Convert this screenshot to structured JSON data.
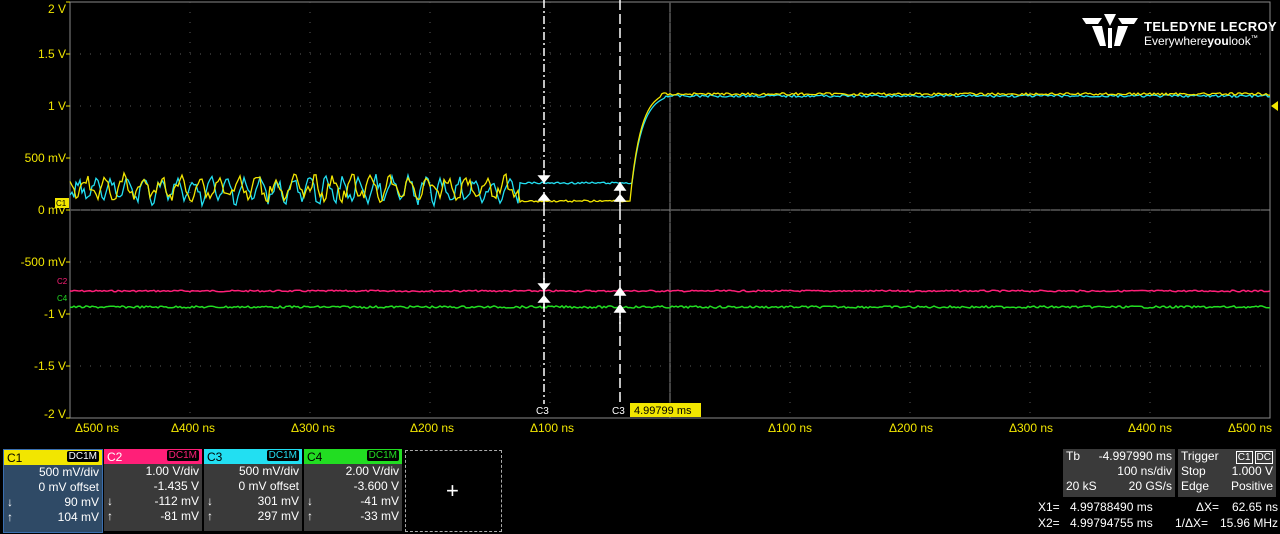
{
  "brand": {
    "name": "TELEDYNE LECROY",
    "tagline_prefix": "Everywhere",
    "tagline_bold": "you",
    "tagline_suffix": "look"
  },
  "colors": {
    "c1": "#f2e600",
    "c2": "#ff1f78",
    "c3": "#22dff2",
    "c4": "#22dd22",
    "grid": "#5a5a5a"
  },
  "y_axis_labels": [
    "2 V",
    "1.5 V",
    "1 V",
    "500 mV",
    "0 mV",
    "-500 mV",
    "-1 V",
    "-1.5 V",
    "-2 V"
  ],
  "x_axis_labels": [
    "Δ500 ns",
    "Δ400 ns",
    "Δ300 ns",
    "Δ200 ns",
    "Δ100 ns",
    "Δ100 ns",
    "Δ200 ns",
    "Δ300 ns",
    "Δ400 ns",
    "Δ500 ns"
  ],
  "trace_markers": {
    "c1": "C1",
    "c2": "C2",
    "c3": "C3",
    "c4": "C4"
  },
  "cursor_markers": {
    "left": "C3",
    "right": "C3",
    "trigger_time": "4.99799 ms"
  },
  "channels": [
    {
      "name": "C1",
      "coupling": "DC1M",
      "vdiv": "500 mV/div",
      "offset": "0 mV offset",
      "down": "90 mV",
      "up": "104 mV",
      "color": "#f2e600"
    },
    {
      "name": "C2",
      "coupling": "DC1M",
      "vdiv": "1.00 V/div",
      "offset": "-1.435 V",
      "down": "-112 mV",
      "up": "-81 mV",
      "color": "#ff1f78"
    },
    {
      "name": "C3",
      "coupling": "DC1M",
      "vdiv": "500 mV/div",
      "offset": "0 mV offset",
      "down": "301 mV",
      "up": "297 mV",
      "color": "#22dff2"
    },
    {
      "name": "C4",
      "coupling": "DC1M",
      "vdiv": "2.00 V/div",
      "offset": "-3.600 V",
      "down": "-41 mV",
      "up": "-33 mV",
      "color": "#22dd22"
    }
  ],
  "timebase": {
    "label": "Tb",
    "delay": "-4.997990 ms",
    "tdiv": "100 ns/div",
    "samples": "20 kS",
    "rate": "20 GS/s"
  },
  "trigger": {
    "label": "Trigger",
    "src": "C1",
    "coupling": "DC",
    "mode": "Stop",
    "level": "1.000 V",
    "type": "Edge",
    "slope": "Positive"
  },
  "cursors": {
    "x1_label": "X1=",
    "x1": "4.99788490 ms",
    "x2_label": "X2=",
    "x2": "4.99794755 ms",
    "dx_label": "ΔX=",
    "dx": "62.65 ns",
    "inv_label": "1/ΔX=",
    "inv": "15.96 MHz"
  }
}
